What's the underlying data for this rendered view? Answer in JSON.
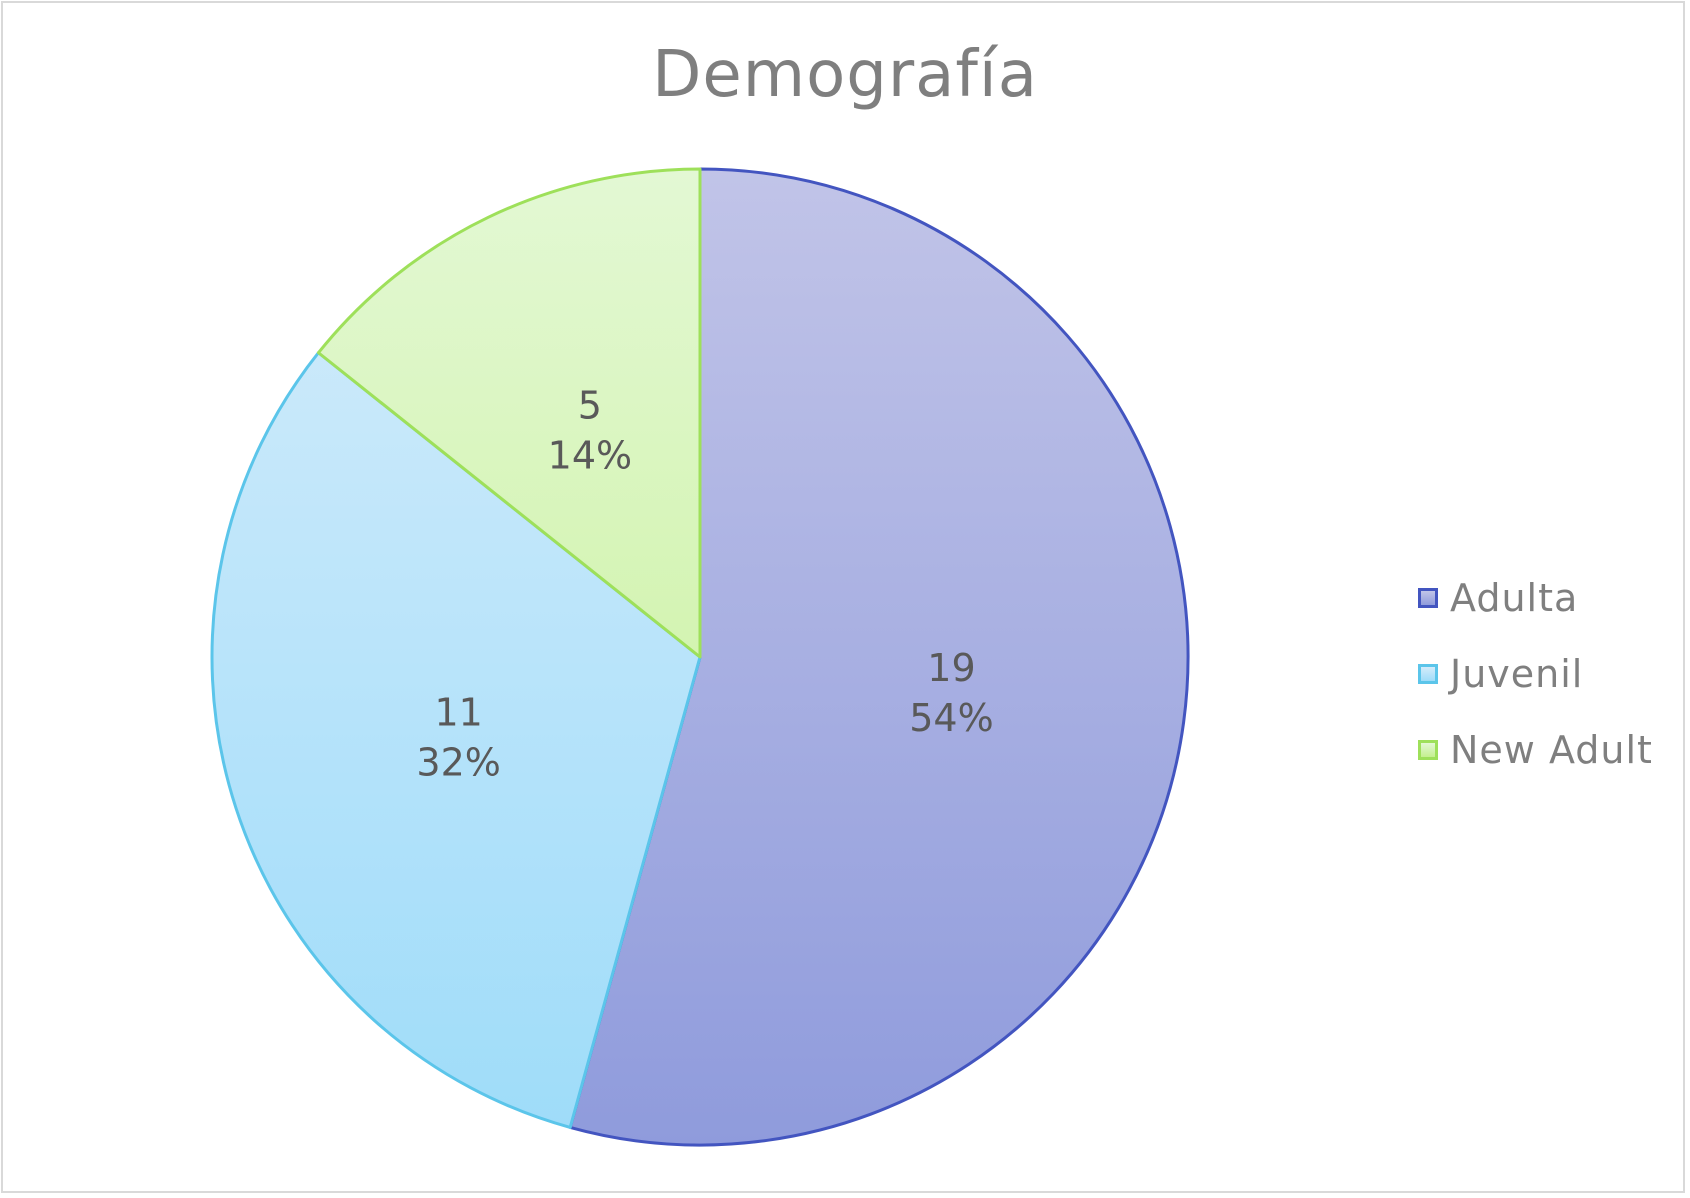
{
  "chart_data": {
    "type": "pie",
    "title": "Demografía",
    "legend_position": "right",
    "slices": [
      {
        "name": "Adulta",
        "value": 19,
        "percent_label": "54%",
        "fill_top": "#c1c4e8",
        "fill_bottom": "#8f9bdc",
        "stroke": "#4355c0"
      },
      {
        "name": "Juvenil",
        "value": 11,
        "percent_label": "32%",
        "fill_top": "#d4ecfb",
        "fill_bottom": "#9edcf9",
        "stroke": "#5bc5ea"
      },
      {
        "name": "New Adult",
        "value": 5,
        "percent_label": "14%",
        "fill_top": "#e3f8d4",
        "fill_bottom": "#c4f08f",
        "stroke": "#9ee05a"
      }
    ]
  }
}
